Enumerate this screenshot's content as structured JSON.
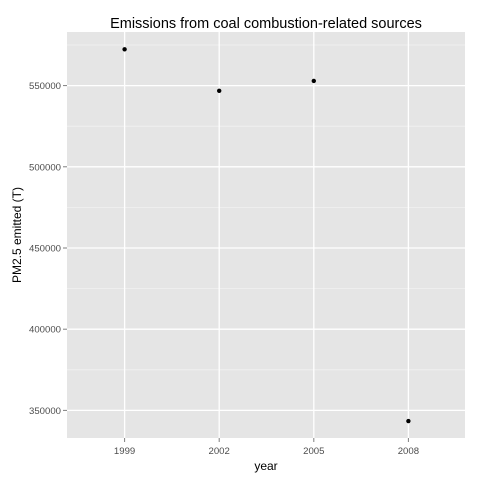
{
  "chart_data": {
    "type": "scatter",
    "title": "Emissions from coal combustion-related sources",
    "xlabel": "year",
    "ylabel": "PM2.5 emitted (T)",
    "x": [
      "1999",
      "2002",
      "2005",
      "2008"
    ],
    "y": [
      572346,
      546789,
      552881,
      343432
    ],
    "x_ticks": [
      "1999",
      "2002",
      "2005",
      "2008"
    ],
    "y_ticks": [
      350000,
      400000,
      450000,
      500000,
      550000
    ],
    "y_tick_labels": [
      "350000",
      "400000",
      "450000",
      "500000",
      "550000"
    ],
    "ylim": [
      333000,
      583000
    ],
    "grid": true,
    "legend": "none",
    "colors": {
      "panel_background": "#e5e5e5",
      "grid_major": "#ffffff",
      "point": "#000000",
      "tick_text": "#4d4d4d"
    }
  }
}
